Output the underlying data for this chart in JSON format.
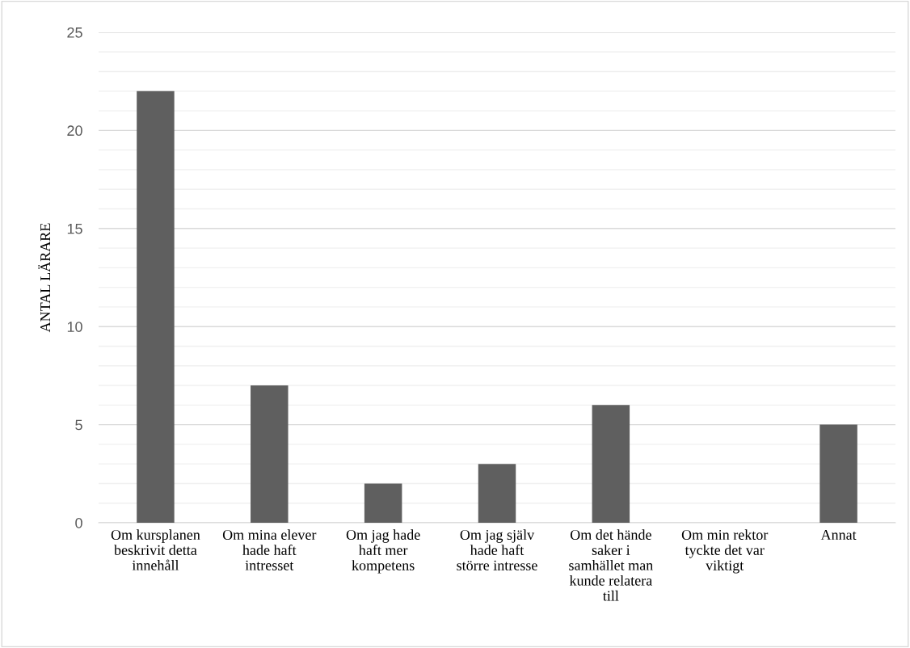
{
  "chart_data": {
    "type": "bar",
    "ylabel": "ANTAL LÄRARE",
    "categories": [
      "Om kursplanen beskrivit detta innehåll",
      "Om mina elever hade haft intresset",
      "Om jag hade haft mer kompetens",
      "Om jag själv hade haft större intresse",
      "Om det hände saker i samhället man kunde relatera till",
      "Om min rektor tyckte det var viktigt",
      "Annat"
    ],
    "values": [
      22,
      7,
      2,
      3,
      6,
      0,
      5
    ],
    "color": "#5f5f5f",
    "ylim": [
      0,
      25
    ],
    "yticks": [
      0,
      5,
      10,
      15,
      20,
      25
    ],
    "grid": "y",
    "legend": false
  }
}
